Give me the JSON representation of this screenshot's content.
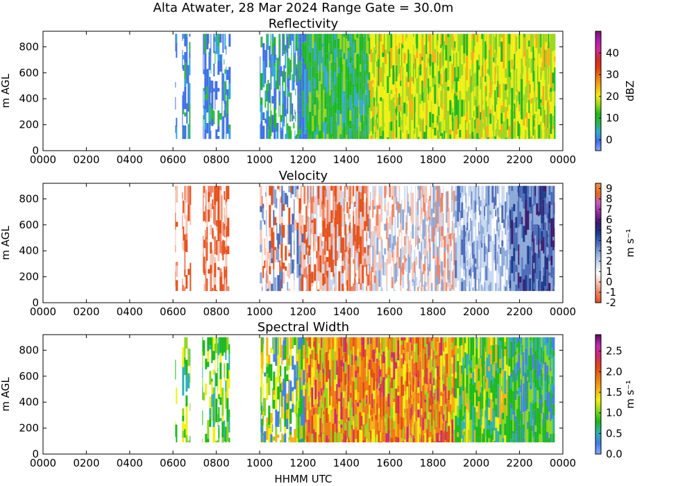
{
  "title": "Alta Atwater, 28 Mar 2024 Range Gate = 30.0m",
  "xlabel": "HHMM UTC",
  "chart_data": [
    {
      "type": "heatmap",
      "title": "Reflectivity",
      "ylabel": "m AGL",
      "xlim": [
        0,
        24
      ],
      "ylim": [
        0,
        920
      ],
      "x_ticks": [
        "0000",
        "0200",
        "0400",
        "0600",
        "0800",
        "1000",
        "1200",
        "1400",
        "1600",
        "1800",
        "2000",
        "2200",
        "0000"
      ],
      "y_ticks": [
        "0",
        "200",
        "400",
        "600",
        "800"
      ],
      "colorbar": {
        "label": "dBZ",
        "range": [
          -5,
          50
        ],
        "ticks": [
          "0",
          "10",
          "20",
          "30",
          "40"
        ],
        "colors": [
          "#8aa6ff",
          "#3f6fe6",
          "#32a8d8",
          "#2fb44a",
          "#1ab81a",
          "#9ad81a",
          "#f0f010",
          "#f4b010",
          "#f07810",
          "#e03a10",
          "#d02a2a",
          "#d02a9a",
          "#b21ab2",
          "#7a1070"
        ]
      },
      "data_extent": {
        "x": [
          6.1,
          23.6
        ],
        "y": [
          90,
          900
        ]
      }
    },
    {
      "type": "heatmap",
      "title": "Velocity",
      "ylabel": "m AGL",
      "xlim": [
        0,
        24
      ],
      "ylim": [
        0,
        920
      ],
      "x_ticks": [
        "0000",
        "0200",
        "0400",
        "0600",
        "0800",
        "1000",
        "1200",
        "1400",
        "1600",
        "1800",
        "2000",
        "2200",
        "0000"
      ],
      "y_ticks": [
        "0",
        "200",
        "400",
        "600",
        "800"
      ],
      "colorbar": {
        "label": "m s⁻¹",
        "range": [
          -2,
          9.5
        ],
        "ticks": [
          "-2",
          "-1",
          "0",
          "1",
          "2",
          "3",
          "4",
          "5",
          "6",
          "7",
          "8",
          "9"
        ],
        "colors": [
          "#e4501a",
          "#f08060",
          "#f6c4b4",
          "#ffffff",
          "#c8d8f0",
          "#8aa8d8",
          "#4a6ab8",
          "#1a3a8a",
          "#3a1a6a",
          "#8a2a9a",
          "#c25ac0",
          "#e46a1a",
          "#f0904a"
        ]
      },
      "data_extent": {
        "x": [
          6.1,
          23.6
        ],
        "y": [
          90,
          900
        ]
      }
    },
    {
      "type": "heatmap",
      "title": "Spectral Width",
      "ylabel": "m AGL",
      "xlim": [
        0,
        24
      ],
      "ylim": [
        0,
        920
      ],
      "x_ticks": [
        "0000",
        "0200",
        "0400",
        "0600",
        "0800",
        "1000",
        "1200",
        "1400",
        "1600",
        "1800",
        "2000",
        "2200",
        "0000"
      ],
      "y_ticks": [
        "0",
        "200",
        "400",
        "600",
        "800"
      ],
      "colorbar": {
        "label": "m s⁻¹",
        "range": [
          0,
          2.9
        ],
        "ticks": [
          "0.0",
          "0.5",
          "1.0",
          "1.5",
          "2.0",
          "2.5"
        ],
        "colors": [
          "#8aa6ff",
          "#3f7fe6",
          "#2fb0b0",
          "#1ab81a",
          "#8ad81a",
          "#f0f010",
          "#f4b010",
          "#f07810",
          "#e04a10",
          "#d02a6a",
          "#c02ab2",
          "#5a0a5a"
        ]
      },
      "data_extent": {
        "x": [
          6.1,
          23.6
        ],
        "y": [
          90,
          900
        ]
      }
    }
  ]
}
